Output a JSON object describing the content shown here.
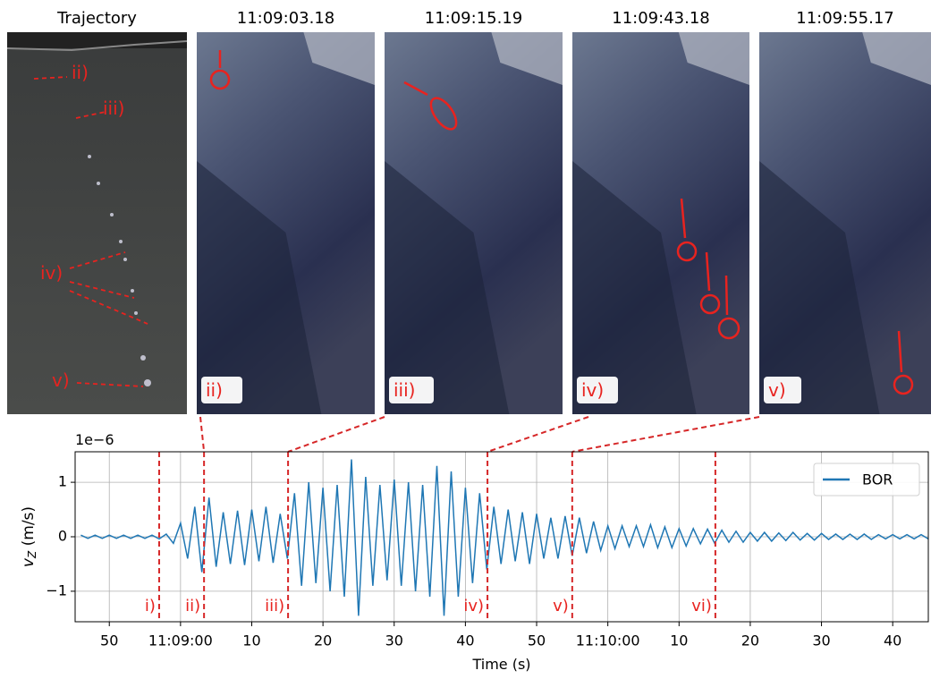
{
  "panels": [
    {
      "title": "Trajectory"
    },
    {
      "title": "11:09:03.18",
      "tag": "ii)"
    },
    {
      "title": "11:09:15.19",
      "tag": "iii)"
    },
    {
      "title": "11:09:43.18",
      "tag": "iv)"
    },
    {
      "title": "11:09:55.17",
      "tag": "v)"
    }
  ],
  "trajectory_labels": [
    "ii)",
    "iii)",
    "iv)",
    "v)"
  ],
  "chart_data": {
    "type": "line",
    "x_label": "Time (s)",
    "y_label": "v",
    "y_label_sub": "Z",
    "y_label_unit": " (m/s)",
    "y_offset_label": "1e−6",
    "xlim": [
      45.2,
      165
    ],
    "ylim": [
      -1.56,
      1.56
    ],
    "xticks": [
      50,
      {
        "value": 60,
        "label": "11:09:00"
      },
      {
        "value": 70,
        "label": "10"
      },
      {
        "value": 80,
        "label": "20"
      },
      {
        "value": 90,
        "label": "30"
      },
      {
        "value": 100,
        "label": "40"
      },
      {
        "value": 110,
        "label": "50"
      },
      {
        "value": 120,
        "label": "11:10:00"
      },
      {
        "value": 130,
        "label": "10"
      },
      {
        "value": 140,
        "label": "20"
      },
      {
        "value": 150,
        "label": "30"
      },
      {
        "value": 160,
        "label": "40"
      }
    ],
    "yticks": [
      {
        "value": -1,
        "label": "−1"
      },
      0,
      1
    ],
    "grid": true,
    "legend": "upper right",
    "events": [
      {
        "label": "i)",
        "x": 57.0
      },
      {
        "label": "ii)",
        "x": 63.3
      },
      {
        "label": "iii)",
        "x": 75.1
      },
      {
        "label": "iv)",
        "x": 103.1
      },
      {
        "label": "v)",
        "x": 115.0
      },
      {
        "label": "vi)",
        "x": 135.1
      }
    ],
    "event_color": "#d62728",
    "series": [
      {
        "name": "BOR",
        "color": "#1f77b4",
        "x": [
          46,
          47,
          48,
          49,
          50,
          51,
          52,
          53,
          54,
          55,
          56,
          57,
          58,
          59,
          60,
          61,
          62,
          63,
          64,
          65,
          66,
          67,
          68,
          69,
          70,
          71,
          72,
          73,
          74,
          75,
          76,
          77,
          78,
          79,
          80,
          81,
          82,
          83,
          84,
          85,
          86,
          87,
          88,
          89,
          90,
          91,
          92,
          93,
          94,
          95,
          96,
          97,
          98,
          99,
          100,
          101,
          102,
          103,
          104,
          105,
          106,
          107,
          108,
          109,
          110,
          111,
          112,
          113,
          114,
          115,
          116,
          117,
          118,
          119,
          120,
          121,
          122,
          123,
          124,
          125,
          126,
          127,
          128,
          129,
          130,
          131,
          132,
          133,
          134,
          135,
          136,
          137,
          138,
          139,
          140,
          141,
          142,
          143,
          144,
          145,
          146,
          147,
          148,
          149,
          150,
          151,
          152,
          153,
          154,
          155,
          156,
          157,
          158,
          159,
          160,
          161,
          162,
          163,
          164,
          165
        ],
        "values": [
          0.03,
          -0.03,
          0.03,
          -0.03,
          0.03,
          -0.03,
          0.03,
          -0.03,
          0.03,
          -0.03,
          0.03,
          -0.04,
          0.05,
          -0.12,
          0.25,
          -0.4,
          0.55,
          -0.65,
          0.72,
          -0.55,
          0.45,
          -0.5,
          0.48,
          -0.52,
          0.5,
          -0.45,
          0.55,
          -0.48,
          0.42,
          -0.4,
          0.8,
          -0.9,
          1.0,
          -0.85,
          0.9,
          -1.0,
          0.95,
          -1.1,
          1.42,
          -1.45,
          1.1,
          -0.9,
          0.95,
          -0.8,
          1.05,
          -0.9,
          1.0,
          -1.0,
          0.95,
          -1.1,
          1.3,
          -1.45,
          1.2,
          -1.1,
          0.9,
          -0.85,
          0.8,
          -0.6,
          0.55,
          -0.5,
          0.5,
          -0.45,
          0.45,
          -0.5,
          0.42,
          -0.4,
          0.35,
          -0.4,
          0.38,
          -0.35,
          0.35,
          -0.3,
          0.28,
          -0.25,
          0.2,
          -0.22,
          0.2,
          -0.18,
          0.2,
          -0.18,
          0.22,
          -0.2,
          0.18,
          -0.2,
          0.15,
          -0.17,
          0.15,
          -0.13,
          0.14,
          -0.12,
          0.12,
          -0.1,
          0.1,
          -0.1,
          0.08,
          -0.08,
          0.08,
          -0.08,
          0.07,
          -0.07,
          0.08,
          -0.06,
          0.06,
          -0.06,
          0.06,
          -0.05,
          0.05,
          -0.05,
          0.05,
          -0.05,
          0.05,
          -0.05,
          0.04,
          -0.04,
          0.04,
          -0.04,
          0.04,
          -0.04,
          0.04,
          -0.04
        ]
      }
    ]
  }
}
